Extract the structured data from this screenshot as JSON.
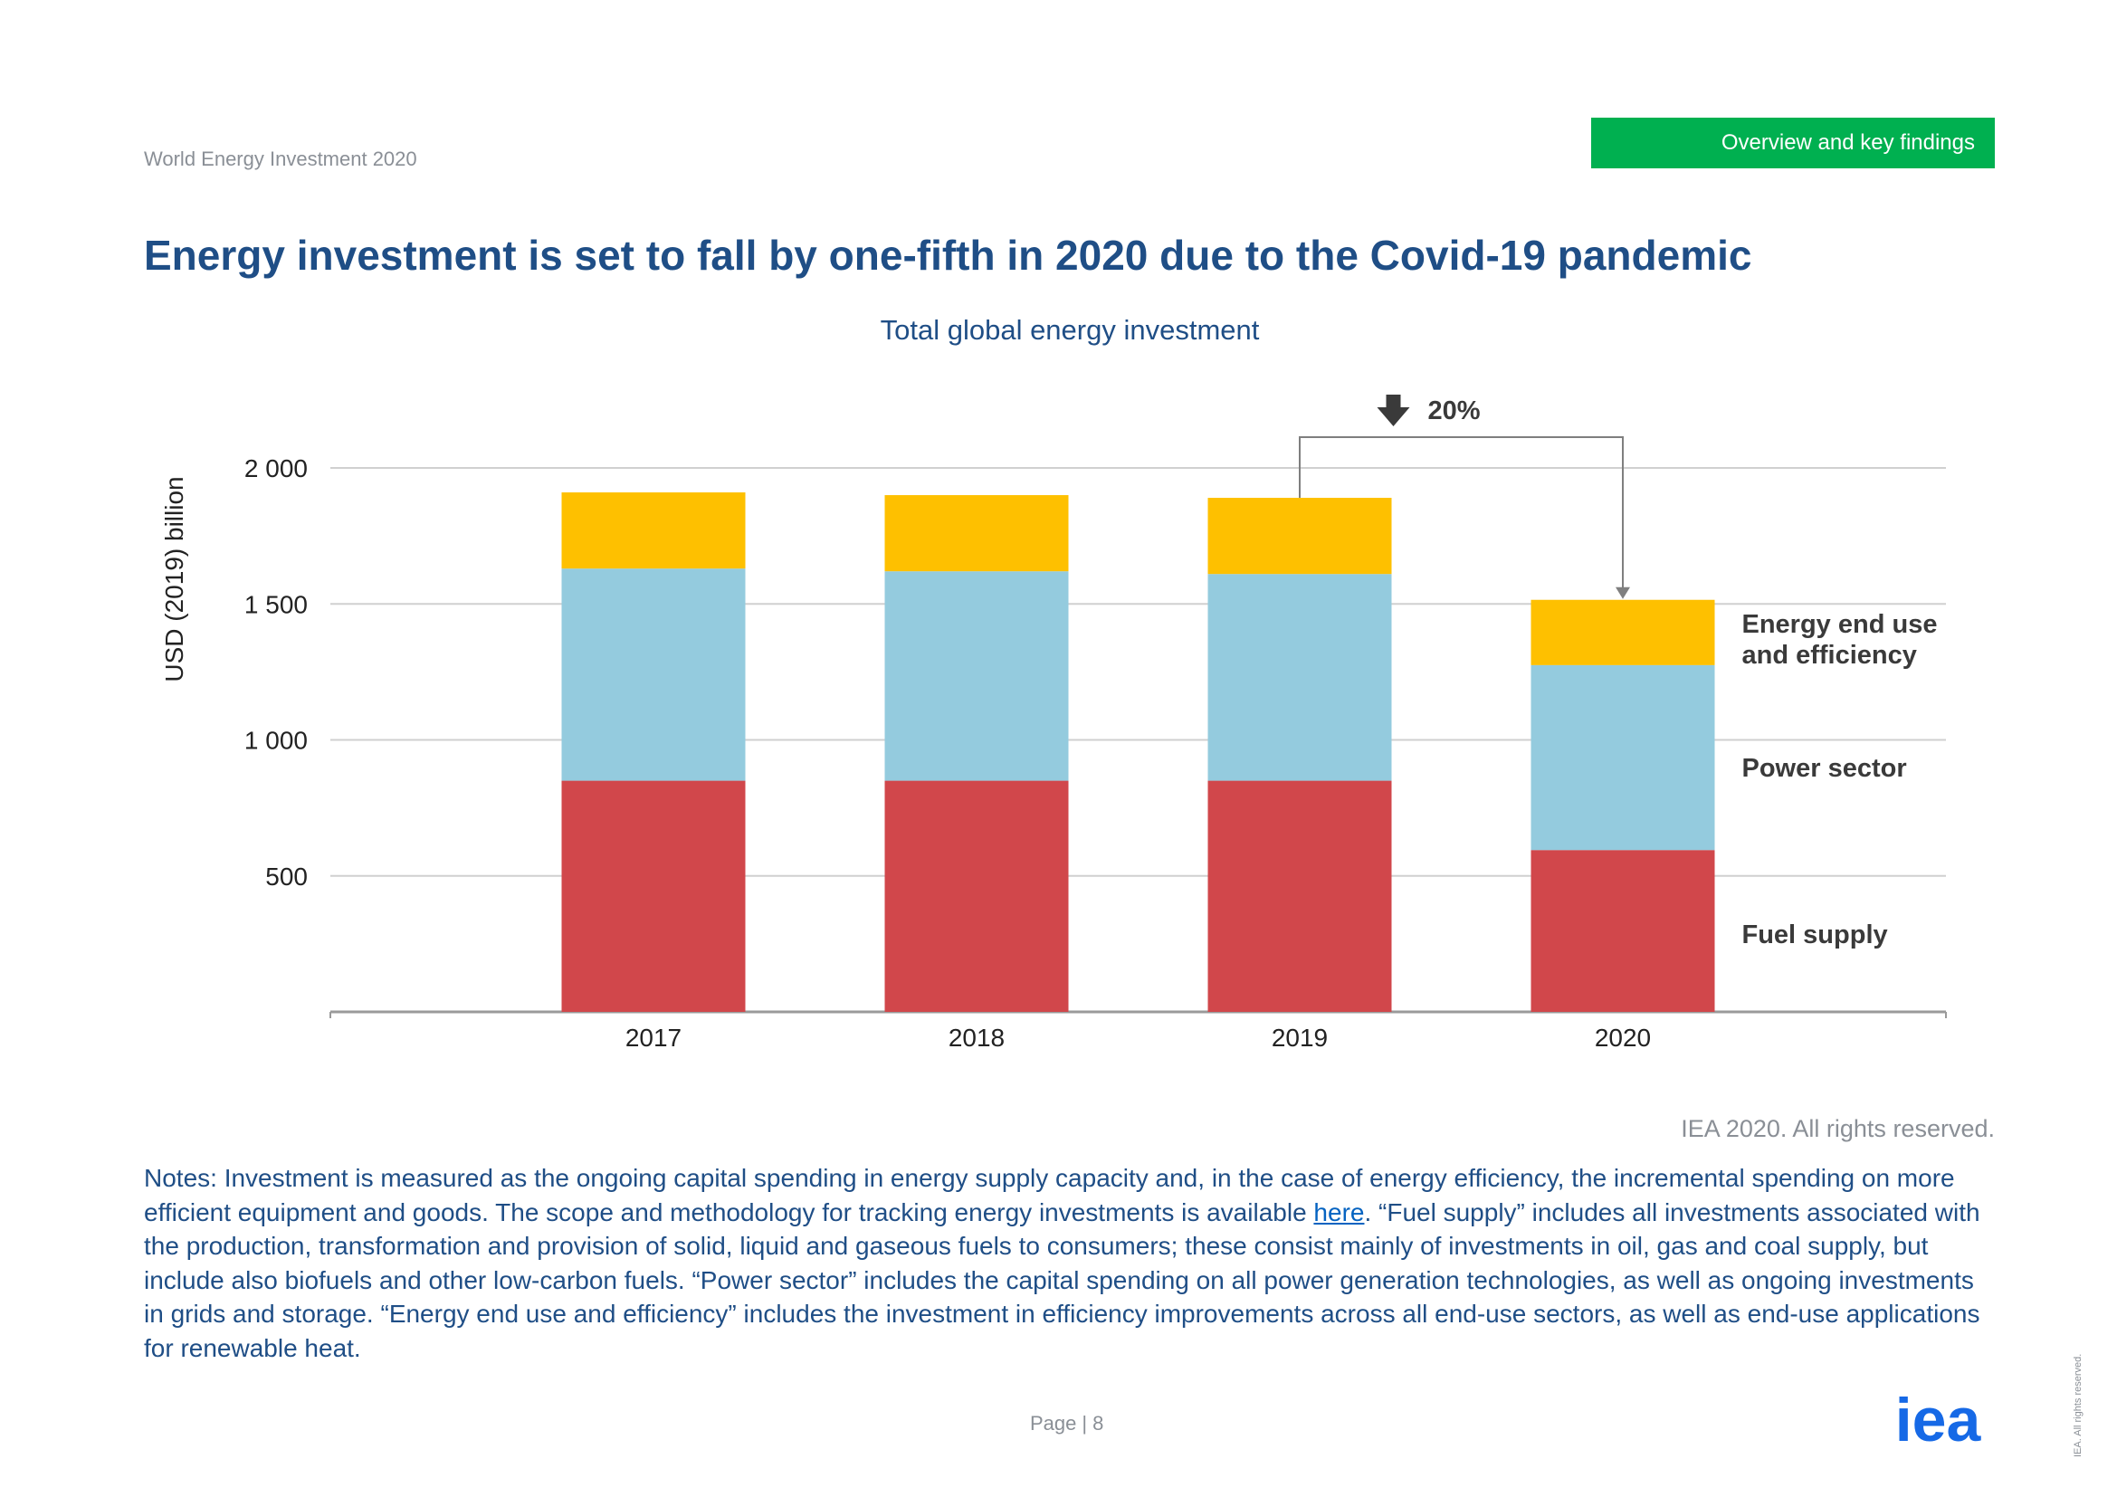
{
  "header": {
    "doc_title": "World Energy Investment 2020",
    "section_tag": "Overview and key findings",
    "tag_color": "#00b050"
  },
  "headline": "Energy investment is set to fall by one-fifth in 2020 due to the Covid-19 pandemic",
  "chart_data": {
    "type": "bar",
    "stacked": true,
    "title": "Total global energy investment",
    "ylabel": "USD (2019) billion",
    "xlabel": "",
    "ylim": [
      0,
      2000
    ],
    "yticks": [
      500,
      1000,
      1500,
      2000
    ],
    "ytick_labels": [
      "500",
      "1 000",
      "1 500",
      "2 000"
    ],
    "grid": true,
    "categories": [
      "2017",
      "2018",
      "2019",
      "2020"
    ],
    "series": [
      {
        "name": "Fuel supply",
        "values": [
          850,
          850,
          850,
          595
        ],
        "color": "#d1474b"
      },
      {
        "name": "Power sector",
        "values": [
          780,
          770,
          760,
          680
        ],
        "color": "#94cbde"
      },
      {
        "name": "Energy end use and efficiency",
        "values": [
          280,
          280,
          280,
          240
        ],
        "color": "#fec000"
      }
    ],
    "series_labels": [
      {
        "series": "Fuel supply",
        "lines": [
          "Fuel supply"
        ]
      },
      {
        "series": "Power sector",
        "lines": [
          "Power sector"
        ]
      },
      {
        "series": "Energy end use and efficiency",
        "lines": [
          "Energy end use",
          "and efficiency"
        ]
      }
    ],
    "annotation": {
      "text": "20%",
      "from": "2019",
      "to": "2020",
      "direction": "down"
    }
  },
  "copyright": "IEA 2020. All rights reserved.",
  "notes": {
    "part1": "Notes: Investment is measured as the ongoing capital spending in energy supply capacity and, in the case of energy efficiency, the incremental spending on more efficient equipment and goods. The scope and methodology for tracking energy investments is available ",
    "link_text": "here",
    "part2": ". “Fuel supply” includes all investments associated with the production, transformation and provision of solid, liquid and gaseous fuels to consumers; these consist mainly of investments in oil, gas and coal supply, but include also biofuels and other low-carbon fuels. “Power sector” includes the capital spending on all power generation technologies, as well as ongoing investments in grids and storage. “Energy end use and efficiency” includes the investment in efficiency improvements across all end-use sectors, as well as end-use applications for renewable heat."
  },
  "footer": {
    "page_label": "Page",
    "page_sep": "|",
    "page_number": "8",
    "logo_text": "iea",
    "logo_color": "#1669e6",
    "side_note": "IEA. All rights reserved."
  }
}
